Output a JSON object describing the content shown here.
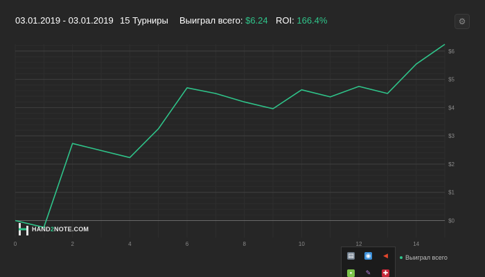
{
  "header": {
    "date_range": "03.01.2019 - 03.01.2019",
    "tournaments": "15 Турниры",
    "won_label": "Выиграл всего:",
    "won_value": "$6.24",
    "roi_label": "ROI:",
    "roi_value": "166.4%"
  },
  "settings_icon": "gear-icon",
  "logo": {
    "prefix": "HAND",
    "two": "2",
    "suffix": "NOTE.COM"
  },
  "legend": {
    "label": "Выиграл всего"
  },
  "tray": {
    "icons": [
      "monitor-icon",
      "network-icon",
      "volume-icon",
      "app-icon",
      "feather-icon",
      "shield-icon"
    ]
  },
  "colors": {
    "line": "#2fc48a",
    "background": "#262626",
    "grid": "#3a3a3a"
  },
  "chart_data": {
    "type": "line",
    "x": [
      0,
      1,
      2,
      3,
      4,
      5,
      6,
      7,
      8,
      9,
      10,
      11,
      12,
      13,
      14,
      15
    ],
    "series": [
      {
        "values": [
          0,
          -0.24,
          2.73,
          2.48,
          2.23,
          3.25,
          4.7,
          4.5,
          4.2,
          3.96,
          4.63,
          4.38,
          4.75,
          4.5,
          5.54,
          6.24
        ]
      }
    ],
    "xticks": [
      "0",
      "2",
      "4",
      "6",
      "8",
      "10",
      "12",
      "14"
    ],
    "xtick_values": [
      0,
      2,
      4,
      6,
      8,
      10,
      12,
      14
    ],
    "yticks": [
      "$0",
      "$1",
      "$2",
      "$3",
      "$4",
      "$5",
      "$6"
    ],
    "ytick_values": [
      0,
      1,
      2,
      3,
      4,
      5,
      6
    ],
    "xlim": [
      0,
      15
    ],
    "ylim": [
      -0.6,
      6.24
    ],
    "grid": true
  }
}
